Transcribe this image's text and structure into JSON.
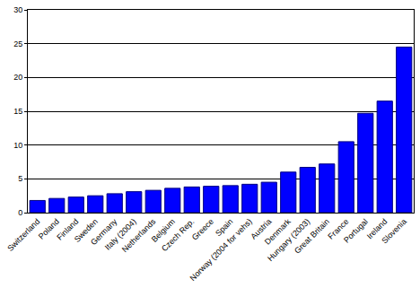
{
  "chart_data": {
    "type": "bar",
    "categories": [
      "Switzerland",
      "Poland",
      "Finland",
      "Sweden",
      "Germany",
      "Italy (2004)",
      "Netherlands",
      "Belgium",
      "Czech Rep.",
      "Greece",
      "Spain",
      "Norway (2004 for vehs)",
      "Austria",
      "Denmark",
      "Hungary (2003)",
      "Great Britain",
      "France",
      "Portugal",
      "Ireland",
      "Slovenia"
    ],
    "values": [
      1.8,
      2.1,
      2.3,
      2.5,
      2.8,
      3.1,
      3.3,
      3.6,
      3.8,
      3.9,
      4.0,
      4.2,
      4.5,
      6.0,
      6.7,
      7.2,
      10.5,
      14.7,
      16.5,
      24.5
    ],
    "color": "#0000ff",
    "ylim": [
      0,
      30
    ],
    "yticks": [
      0,
      5,
      10,
      15,
      20,
      25,
      30
    ],
    "grid": true
  }
}
